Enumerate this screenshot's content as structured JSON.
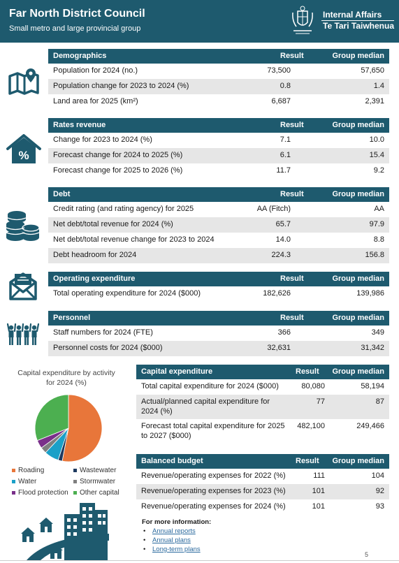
{
  "header": {
    "title": "Far North District Council",
    "subtitle": "Small metro and large provincial group",
    "logo_line1": "Internal Affairs",
    "logo_line2": "Te Tari Taiwhenua"
  },
  "colors": {
    "header": "#1e5a6e",
    "alt_row": "#e6e6e6",
    "link": "#2b6a9e"
  },
  "demographics": {
    "title": "Demographics",
    "result": "Result",
    "median": "Group median",
    "rows": [
      {
        "label": "Population for 2024 (no.)",
        "result": "73,500",
        "median": "57,650"
      },
      {
        "label": "Population change for 2023 to 2024 (%)",
        "result": "0.8",
        "median": "1.4"
      },
      {
        "label": "Land area for 2025 (km²)",
        "result": "6,687",
        "median": "2,391"
      }
    ]
  },
  "rates": {
    "title": "Rates revenue",
    "result": "Result",
    "median": "Group median",
    "rows": [
      {
        "label": "Change for 2023 to 2024 (%)",
        "result": "7.1",
        "median": "10.0"
      },
      {
        "label": "Forecast change for 2024 to 2025 (%)",
        "result": "6.1",
        "median": "15.4"
      },
      {
        "label": "Forecast change for 2025 to 2026 (%)",
        "result": "11.7",
        "median": "9.2"
      }
    ]
  },
  "debt": {
    "title": "Debt",
    "result": "Result",
    "median": "Group median",
    "rows": [
      {
        "label": "Credit rating (and rating agency) for 2025",
        "result": "AA (Fitch)",
        "median": "AA"
      },
      {
        "label": "Net debt/total revenue for 2024 (%)",
        "result": "65.7",
        "median": "97.9"
      },
      {
        "label": "Net debt/total revenue change for 2023 to 2024",
        "result": "14.0",
        "median": "8.8"
      },
      {
        "label": "Debt headroom for 2024",
        "result": "224.3",
        "median": "156.8"
      }
    ]
  },
  "opex": {
    "title": "Operating expenditure",
    "result": "Result",
    "median": "Group median",
    "rows": [
      {
        "label": "Total operating expenditure for 2024 ($000)",
        "result": "182,626",
        "median": "139,986"
      }
    ]
  },
  "personnel": {
    "title": "Personnel",
    "result": "Result",
    "median": "Group median",
    "rows": [
      {
        "label": "Staff numbers for 2024 (FTE)",
        "result": "366",
        "median": "349"
      },
      {
        "label": "Personnel costs for 2024 ($000)",
        "result": "32,631",
        "median": "31,342"
      }
    ]
  },
  "capex": {
    "title": "Capital expenditure",
    "result": "Result",
    "median": "Group median",
    "rows": [
      {
        "label1": "Total capital expenditure for 2024 ($000)",
        "label2": "",
        "result": "80,080",
        "median": "58,194"
      },
      {
        "label1": "Actual/planned capital expenditure for",
        "label2": "2024 (%)",
        "result": "77",
        "median": "87"
      },
      {
        "label1": "Forecast total capital expenditure for 2025",
        "label2": "to 2027 ($000)",
        "result": "482,100",
        "median": "249,466"
      }
    ]
  },
  "budget": {
    "title": "Balanced budget",
    "result": "Result",
    "median": "Group median",
    "rows": [
      {
        "label": "Revenue/operating expenses for 2022 (%)",
        "result": "111",
        "median": "104"
      },
      {
        "label": "Revenue/operating expenses for 2023 (%)",
        "result": "101",
        "median": "92"
      },
      {
        "label": "Revenue/operating expenses for 2024 (%)",
        "result": "101",
        "median": "93"
      }
    ]
  },
  "chart_data": {
    "type": "pie",
    "title": "Capital expenditure by activity for 2024 (%)",
    "title_line1": "Capital expenditure by activity",
    "title_line2": "for 2024 (%)",
    "series": [
      {
        "name": "Roading",
        "value": 53,
        "color": "#e8763a"
      },
      {
        "name": "Wastewater",
        "value": 2,
        "color": "#1e3a5f"
      },
      {
        "name": "Water",
        "value": 7,
        "color": "#1aa0c8"
      },
      {
        "name": "Stormwater",
        "value": 3,
        "color": "#7f7f7f"
      },
      {
        "name": "Flood protection",
        "value": 4,
        "color": "#7a2f8a"
      },
      {
        "name": "Other capital",
        "value": 31,
        "color": "#4caf50"
      }
    ]
  },
  "more_info": {
    "heading": "For more information:",
    "links": [
      "Annual reports",
      "Annual plans",
      "Long-term plans"
    ]
  },
  "page_number": "5",
  "icons": [
    "map-icon",
    "house-percent-icon",
    "coins-icon",
    "envelope-icon",
    "people-icon",
    "city-icon"
  ]
}
